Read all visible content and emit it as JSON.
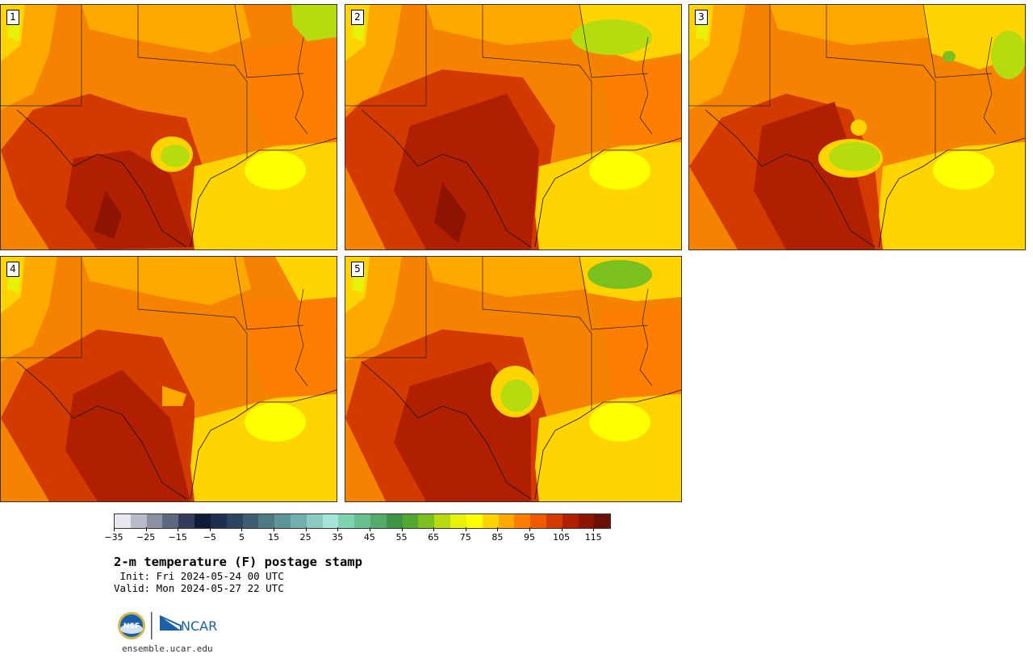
{
  "panels": [
    {
      "label": "1",
      "hot_spot": "center-west",
      "cool_blob": true
    },
    {
      "label": "2",
      "hot_spot": "broad",
      "cool_blob": false
    },
    {
      "label": "3",
      "hot_spot": "center",
      "cool_blob": true
    },
    {
      "label": "4",
      "hot_spot": "broad-west",
      "cool_blob": false
    },
    {
      "label": "5",
      "hot_spot": "center",
      "cool_blob": true
    }
  ],
  "colorbar": {
    "colors": [
      "#e6e8ee",
      "#b9bcc8",
      "#8c91a3",
      "#5f6680",
      "#333c5c",
      "#0f1c38",
      "#1c2f4f",
      "#2a4560",
      "#3d5e70",
      "#4f7a84",
      "#5f9498",
      "#73afae",
      "#8ccac4",
      "#a6e6da",
      "#7fd4b0",
      "#6abf8f",
      "#55aa6e",
      "#3f9545",
      "#52a830",
      "#7cc020",
      "#b6dc10",
      "#e6f20a",
      "#ffff00",
      "#ffd400",
      "#ffa800",
      "#ff7d00",
      "#f05a00",
      "#d23a00",
      "#b02000",
      "#8c1400",
      "#6a1006"
    ],
    "tick_labels": [
      "−35",
      "−25",
      "−15",
      "−5",
      "5",
      "15",
      "25",
      "35",
      "45",
      "55",
      "65",
      "75",
      "85",
      "95",
      "105",
      "115"
    ]
  },
  "title": "2-m temperature (F) postage stamp",
  "init": " Init: Fri 2024-05-24 00 UTC",
  "valid": "Valid: Mon 2024-05-27 22 UTC",
  "logos": {
    "nsf": "NSF",
    "ncar": "NCAR"
  },
  "url": "ensemble.ucar.edu"
}
